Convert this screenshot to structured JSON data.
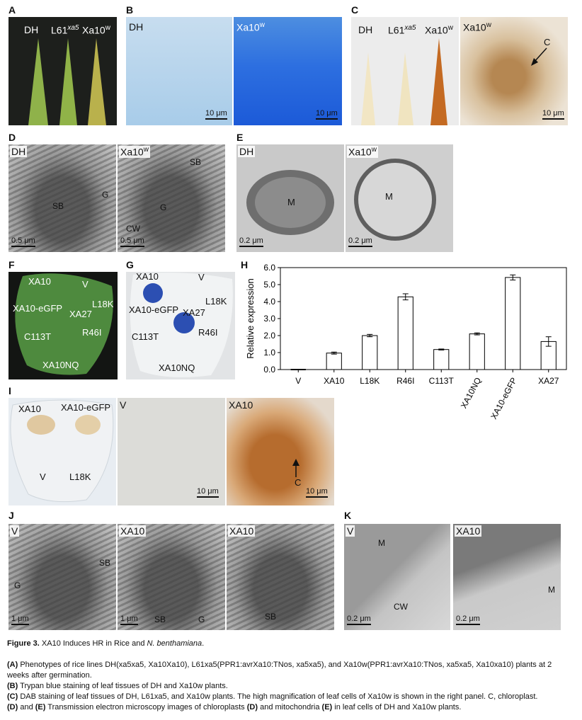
{
  "panels": {
    "A": {
      "letter": "A",
      "labels": [
        "DH",
        "L61",
        "xa5",
        "Xa10",
        "w"
      ]
    },
    "B": {
      "letter": "B",
      "left": "DH",
      "right": "Xa10",
      "right_sup": "w",
      "scale_left": "10 μm",
      "scale_right": "10 μm"
    },
    "C": {
      "letter": "C",
      "labels": [
        "DH",
        "L61",
        "xa5",
        "Xa10",
        "w"
      ],
      "right": "Xa10",
      "right_sup": "w",
      "arrow": "C",
      "scale": "10 μm"
    },
    "D": {
      "letter": "D",
      "left": "DH",
      "right": "Xa10",
      "right_sup": "w",
      "sb": "SB",
      "g": "G",
      "cw": "CW",
      "scale_left": "0.5 μm",
      "scale_right": "0.5 μm"
    },
    "E": {
      "letter": "E",
      "left": "DH",
      "right": "Xa10",
      "right_sup": "w",
      "m": "M",
      "scale_left": "0.2 μm",
      "scale_right": "0.2 μm"
    },
    "F": {
      "letter": "F",
      "labels": [
        "XA10",
        "V",
        "XA10-eGFP",
        "XA27",
        "L18K",
        "C113T",
        "R46I",
        "XA10NQ"
      ]
    },
    "G": {
      "letter": "G",
      "labels": [
        "XA10",
        "V",
        "XA10-eGFP",
        "XA27",
        "L18K",
        "C113T",
        "R46I",
        "XA10NQ"
      ]
    },
    "H": {
      "letter": "H"
    },
    "I": {
      "letter": "I",
      "left_labels": [
        "XA10",
        "XA10-eGFP",
        "V",
        "L18K"
      ],
      "mid": "V",
      "right": "XA10",
      "arrow": "C",
      "scale_mid": "10 μm",
      "scale_right": "10 μm"
    },
    "J": {
      "letter": "J",
      "v": "V",
      "xa10a": "XA10",
      "xa10b": "XA10",
      "sb": "SB",
      "g": "G",
      "scale": "1 μm"
    },
    "K": {
      "letter": "K",
      "v": "V",
      "xa10": "XA10",
      "m": "M",
      "cw": "CW",
      "scale": "0.2 μm"
    }
  },
  "chart_data": {
    "type": "bar",
    "categories": [
      "V",
      "XA10",
      "L18K",
      "R46I",
      "C113T",
      "XA10NQ",
      "XA10-eGFP",
      "XA27"
    ],
    "values": [
      0.0,
      0.97,
      2.0,
      4.28,
      1.18,
      2.1,
      5.42,
      1.65
    ],
    "errors": [
      0.0,
      0.06,
      0.07,
      0.18,
      0.03,
      0.06,
      0.15,
      0.28
    ],
    "ylabel": "Relative expression",
    "ylim": [
      0,
      6
    ],
    "yticks": [
      "0.0",
      "1.0",
      "2.0",
      "3.0",
      "4.0",
      "5.0",
      "6.0"
    ],
    "bar_fill": "#ffffff",
    "bar_stroke": "#000000"
  },
  "caption": {
    "figure": "Figure 3.",
    "title_a": "XA10 Induces HR in Rice and ",
    "title_italic": "N. benthamiana",
    "title_end": ".",
    "A_label": "(A)",
    "A_text": "Phenotypes of rice lines DH(xa5xa5, Xa10Xa10), L61xa5(PPR1:avrXa10:TNos, xa5xa5), and Xa10w(PPR1:avrXa10:TNos, xa5xa5, Xa10xa10) plants at 2 weeks after germination.",
    "B_label": "(B)",
    "B_text": "Trypan blue staining of leaf tissues of DH and Xa10w plants.",
    "C_label": "(C)",
    "C_text": "DAB staining of leaf tissues of DH, L61xa5, and Xa10w plants. The high magnification of leaf cells of Xa10w is shown in the right panel. C, chloroplast.",
    "D_label": "(D)",
    "D_mid": "and",
    "E_label": "(E)",
    "DE_text_a": "Transmission electron microscopy images of chloroplasts",
    "DE_text_b": "and mitochondria",
    "DE_text_c": "in leaf cells of DH and Xa10w plants."
  }
}
